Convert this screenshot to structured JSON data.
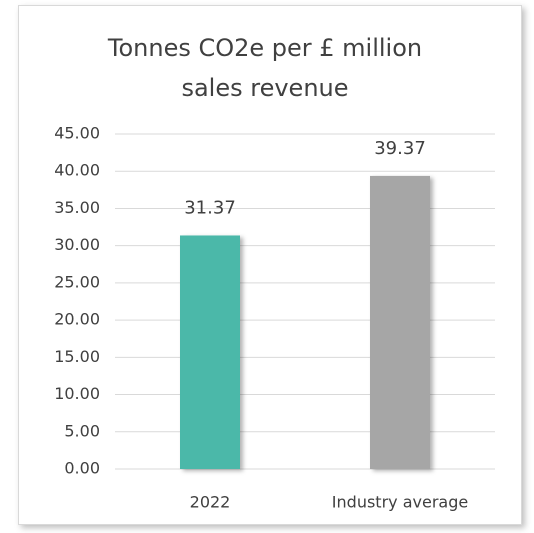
{
  "chart_data": {
    "type": "bar",
    "title": "Tonnes CO2e per £ million sales revenue",
    "categories": [
      "2022",
      "Industry average"
    ],
    "values": [
      31.37,
      39.37
    ],
    "colors": [
      "#4cb8a9",
      "#a6a6a6"
    ],
    "ylim": [
      0,
      45
    ],
    "yticks": [
      {
        "value": 0,
        "label": "0.00"
      },
      {
        "value": 5,
        "label": "5.00"
      },
      {
        "value": 10,
        "label": "10.00"
      },
      {
        "value": 15,
        "label": "15.00"
      },
      {
        "value": 20,
        "label": "20.00"
      },
      {
        "value": 25,
        "label": "25.00"
      },
      {
        "value": 30,
        "label": "30.00"
      },
      {
        "value": 35,
        "label": "35.00"
      },
      {
        "value": 40,
        "label": "40.00"
      },
      {
        "value": 45,
        "label": "45.00"
      }
    ],
    "grid": true
  }
}
